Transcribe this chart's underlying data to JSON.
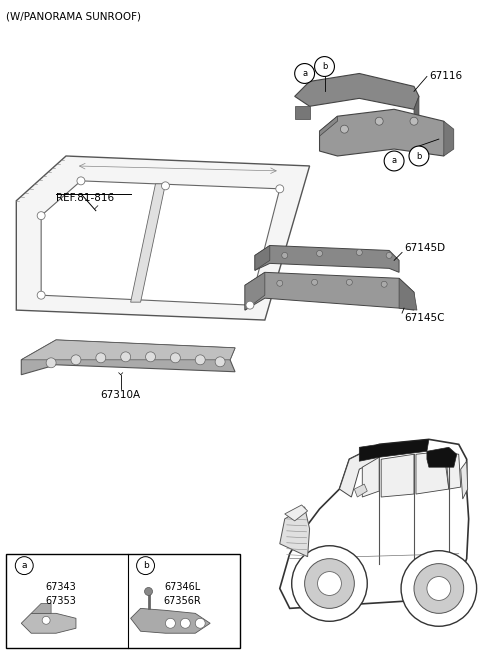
{
  "title": "(W/PANORAMA SUNROOF)",
  "bg_color": "#ffffff",
  "fig_width": 4.8,
  "fig_height": 6.57,
  "dpi": 100,
  "label_67116": "67116",
  "label_ref": "REF.81-816",
  "label_67145D": "67145D",
  "label_67145C": "67145C",
  "label_67310A": "67310A",
  "label_a1": "a",
  "label_b1": "b",
  "label_a2": "a",
  "label_b2": "b",
  "label_67343": "67343\n67353",
  "label_67346": "67346L\n67356R"
}
